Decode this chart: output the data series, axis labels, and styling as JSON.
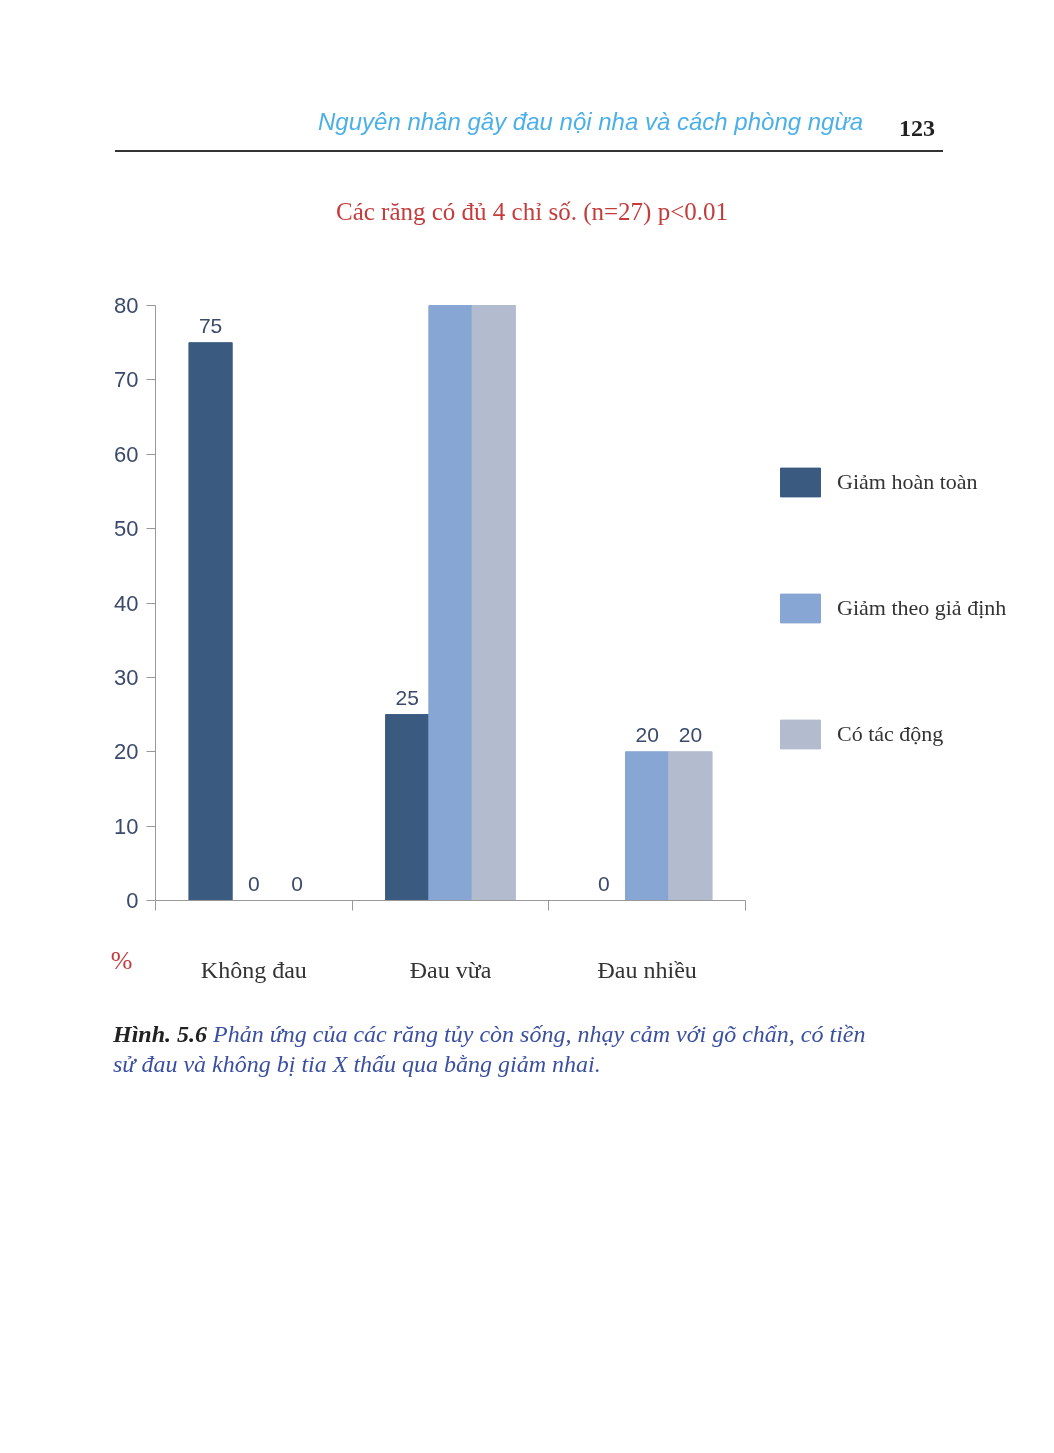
{
  "chart_data": {
    "type": "bar",
    "title": "Các răng có đủ 4 chỉ số. (n=27) p<0.01",
    "ylabel": "%",
    "categories": [
      "Không đau",
      "Đau vừa",
      "Đau nhiều"
    ],
    "series": [
      {
        "name": "Giảm hoàn toàn",
        "color": "#3a5a80",
        "values": [
          75,
          25,
          0
        ],
        "value_labels": [
          "75",
          "25",
          "0"
        ]
      },
      {
        "name": "Giảm theo giả định",
        "color": "#87a6d3",
        "values": [
          0,
          80,
          20
        ],
        "value_labels": [
          "0",
          null,
          "20"
        ]
      },
      {
        "name": "Có tác động",
        "color": "#b3bccf",
        "values": [
          0,
          80,
          20
        ],
        "value_labels": [
          "0",
          null,
          "20"
        ]
      }
    ],
    "ylim": [
      0,
      80
    ],
    "yticks": [
      0,
      10,
      20,
      30,
      40,
      50,
      60,
      70,
      80
    ],
    "legend": "right",
    "annotations": [
      "Nguyên nhân gây đau nội nha và cách phòng ngừa",
      "123",
      "Hình. 5.6 Phản ứng của các răng tủy còn sống, nhạy cảm với gõ chẩn, có tiền sử đau và không bị tia X thấu qua bằng giảm nhai."
    ]
  }
}
